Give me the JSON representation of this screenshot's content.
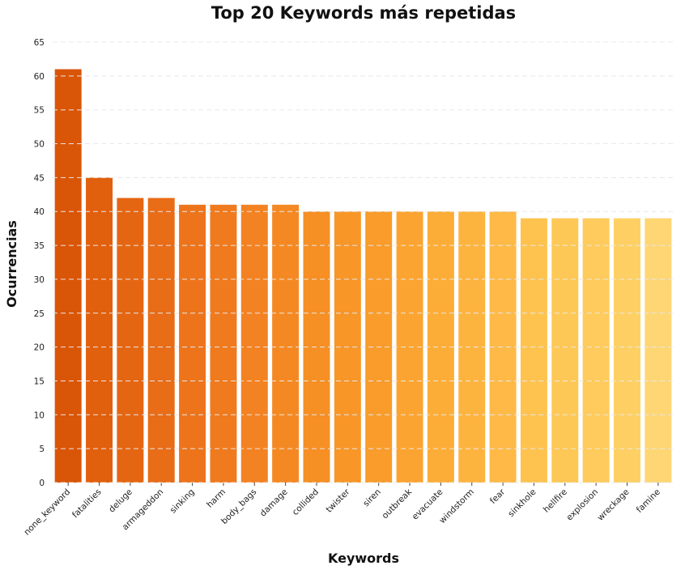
{
  "chart_data": {
    "type": "bar",
    "title": "Top 20 Keywords más repetidas",
    "xlabel": "Keywords",
    "ylabel": "Ocurrencias",
    "categories": [
      "none_keyword",
      "fatalities",
      "deluge",
      "armageddon",
      "sinking",
      "harm",
      "body_bags",
      "damage",
      "collided",
      "twister",
      "siren",
      "outbreak",
      "evacuate",
      "windstorm",
      "fear",
      "sinkhole",
      "hellfire",
      "explosion",
      "wreckage",
      "famine"
    ],
    "values": [
      61,
      45,
      42,
      42,
      41,
      41,
      41,
      41,
      40,
      40,
      40,
      40,
      40,
      40,
      40,
      39,
      39,
      39,
      39,
      39
    ],
    "ylim": [
      0,
      65
    ],
    "yticks": [
      0,
      5,
      10,
      15,
      20,
      25,
      30,
      35,
      40,
      45,
      50,
      55,
      60,
      65
    ],
    "grid": true,
    "colors": [
      "#d95508",
      "#e0600e",
      "#e56612",
      "#e96c16",
      "#ee741b",
      "#f07a1e",
      "#f38223",
      "#f48924",
      "#f68f24",
      "#f89627",
      "#f99c2b",
      "#fba431",
      "#fcad38",
      "#fdb43f",
      "#feb946",
      "#fec34e",
      "#fec856",
      "#fecb5c",
      "#fed063",
      "#fed673"
    ]
  }
}
